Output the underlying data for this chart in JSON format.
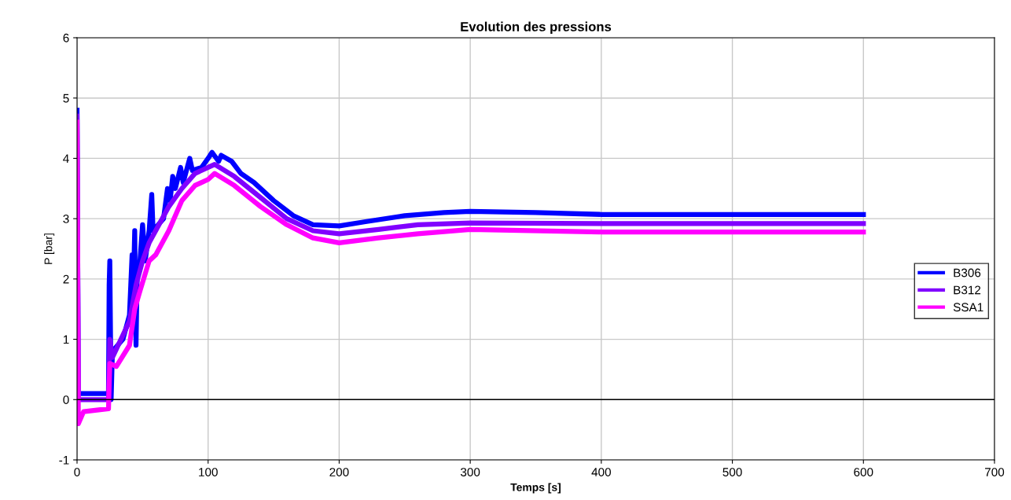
{
  "chart_data": {
    "type": "line",
    "title": "Evolution des pressions",
    "xlabel": "Temps [s]",
    "ylabel": "P [bar]",
    "xlim": [
      0,
      700
    ],
    "xticks": [
      0,
      100,
      200,
      300,
      400,
      500,
      600,
      700
    ],
    "ylim": [
      -1,
      6
    ],
    "yticks": [
      -1,
      0,
      1,
      2,
      3,
      4,
      5,
      6
    ],
    "grid": true,
    "legend": "right",
    "marker": "none",
    "line_style": "solid",
    "series": [
      {
        "name": "B306",
        "color": "#0000ff",
        "x": [
          0,
          1,
          24,
          24.5,
          25,
          26,
          27,
          35,
          40,
          42,
          43,
          44,
          45,
          46,
          48,
          50,
          52,
          55,
          57,
          58,
          62,
          66,
          69,
          71,
          73,
          75,
          79,
          81,
          86,
          88,
          95,
          100,
          103,
          108,
          110,
          118,
          125,
          135,
          150,
          165,
          180,
          200,
          220,
          250,
          280,
          300,
          350,
          400,
          600
        ],
        "values": [
          4.8,
          0.1,
          0.1,
          1.9,
          2.3,
          0,
          0.8,
          1.0,
          1.4,
          2.4,
          1.9,
          2.8,
          0.9,
          2.2,
          2.3,
          2.9,
          2.3,
          2.8,
          3.4,
          2.8,
          2.9,
          3.0,
          3.5,
          3.3,
          3.7,
          3.5,
          3.85,
          3.6,
          4.0,
          3.8,
          3.85,
          4.0,
          4.1,
          3.95,
          4.05,
          3.95,
          3.75,
          3.6,
          3.3,
          3.05,
          2.9,
          2.88,
          2.95,
          3.05,
          3.1,
          3.12,
          3.1,
          3.07,
          3.07
        ]
      },
      {
        "name": "B312",
        "color": "#8000ff",
        "x": [
          0,
          1,
          24,
          25,
          27,
          40,
          45,
          50,
          55,
          60,
          70,
          80,
          90,
          100,
          105,
          120,
          140,
          160,
          180,
          200,
          230,
          260,
          300,
          400,
          600
        ],
        "values": [
          4.7,
          0.0,
          0.0,
          1.0,
          0.7,
          1.3,
          1.9,
          2.3,
          2.6,
          2.8,
          3.2,
          3.5,
          3.75,
          3.85,
          3.9,
          3.7,
          3.35,
          3.0,
          2.8,
          2.75,
          2.82,
          2.9,
          2.93,
          2.92,
          2.92
        ]
      },
      {
        "name": "SSA1",
        "color": "#ff00ff",
        "x": [
          0,
          1,
          5,
          24,
          25,
          30,
          40,
          44,
          48,
          55,
          60,
          70,
          80,
          90,
          100,
          105,
          120,
          140,
          160,
          180,
          200,
          230,
          260,
          300,
          400,
          600
        ],
        "values": [
          4.6,
          -0.4,
          -0.2,
          -0.15,
          0.6,
          0.55,
          0.9,
          1.5,
          1.8,
          2.3,
          2.4,
          2.8,
          3.3,
          3.55,
          3.65,
          3.75,
          3.55,
          3.2,
          2.9,
          2.68,
          2.6,
          2.68,
          2.75,
          2.82,
          2.78,
          2.78
        ]
      }
    ]
  }
}
